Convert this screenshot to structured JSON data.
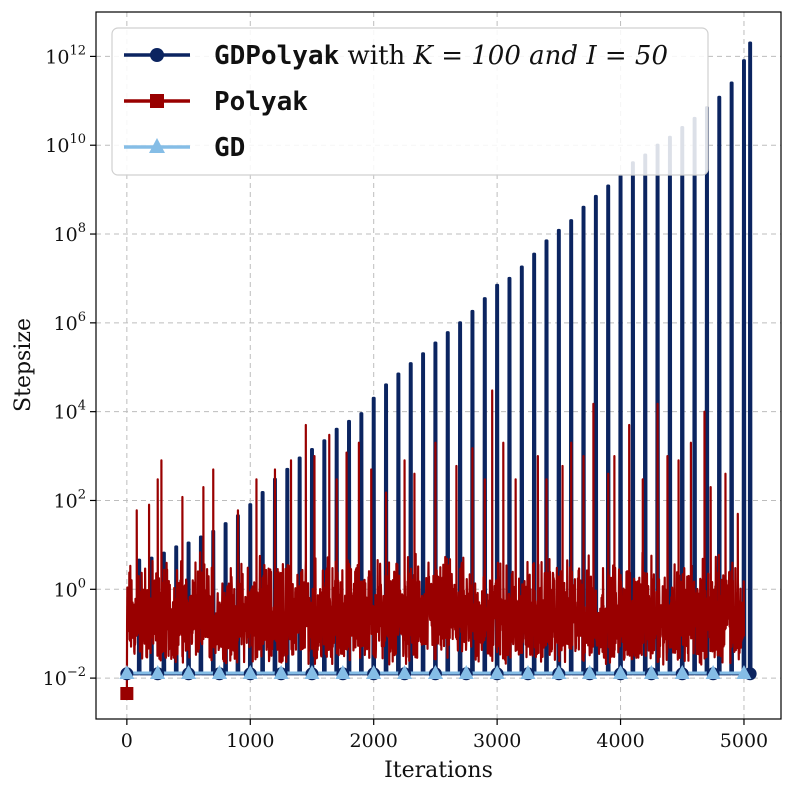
{
  "chart_data": {
    "type": "line",
    "title": "",
    "xlabel": "Iterations",
    "ylabel": "Stepsize",
    "xlim": [
      -250,
      5300
    ],
    "ylim": [
      0.0012,
      10000000000000
    ],
    "yscale": "log",
    "grid": true,
    "legend_position": "top-left",
    "x_ticks": [
      0,
      1000,
      2000,
      3000,
      4000,
      5000
    ],
    "x_tick_labels": [
      "0",
      "1000",
      "2000",
      "3000",
      "4000",
      "5000"
    ],
    "y_tick_exponents": [
      -2,
      0,
      2,
      4,
      6,
      8,
      10,
      12
    ],
    "y_tick_base": "10",
    "legend": [
      {
        "mono": "GDPolyak",
        "text": " with ",
        "math": "K = 100 and I = 50"
      },
      {
        "mono": "Polyak",
        "text": "",
        "math": ""
      },
      {
        "mono": "GD",
        "text": "",
        "math": ""
      }
    ],
    "series": [
      {
        "name": "GDPolyak with K = 100 and I = 50",
        "color": "#0b2460",
        "marker": "circle",
        "baseline": 0.0125,
        "spike_x": [
          100,
          200,
          300,
          400,
          500,
          600,
          700,
          800,
          900,
          1000,
          1100,
          1200,
          1300,
          1400,
          1500,
          1600,
          1700,
          1800,
          1900,
          2000,
          2100,
          2200,
          2300,
          2400,
          2500,
          2600,
          2700,
          2800,
          2900,
          3000,
          3100,
          3200,
          3300,
          3400,
          3500,
          3600,
          3700,
          3800,
          3900,
          4000,
          4100,
          4200,
          4300,
          4400,
          4500,
          4600,
          4700,
          4800,
          4900,
          5000,
          5050
        ],
        "spike_y": [
          4.5,
          5,
          6.5,
          9,
          11,
          15,
          20,
          30,
          45,
          80,
          150,
          300,
          500,
          900,
          1400,
          2200,
          4000,
          6000,
          9000,
          20000,
          40000,
          70000,
          120000,
          200000,
          350000,
          600000,
          1000000,
          1800000,
          3500000,
          7000000,
          10000000,
          18000000,
          35000000,
          70000000,
          120000000,
          200000000,
          400000000,
          700000000,
          1200000000,
          2000000000,
          4000000000,
          6000000000,
          10000000000,
          15000000000,
          25000000000,
          40000000000,
          70000000000,
          120000000000,
          250000000000,
          800000000000,
          2000000000000
        ],
        "marker_x": [
          0,
          250,
          500,
          750,
          1000,
          1250,
          1500,
          1750,
          2000,
          2250,
          2500,
          2750,
          3000,
          3250,
          3500,
          3750,
          4000,
          4250,
          4500,
          4750,
          5050
        ]
      },
      {
        "name": "Polyak",
        "color": "#990000",
        "marker": "square",
        "x_range": [
          0,
          5000
        ],
        "typical_range": [
          0.02,
          8
        ],
        "peak_x": [
          80,
          180,
          250,
          280,
          450,
          620,
          700,
          900,
          1050,
          1200,
          1330,
          1450,
          1520,
          1640,
          1700,
          1780,
          1880,
          1980,
          2100,
          2250,
          2330,
          2500,
          2670,
          2800,
          2900,
          2960,
          3050,
          3150,
          3330,
          3400,
          3530,
          3600,
          3700,
          3780,
          3900,
          3950,
          4070,
          4180,
          4300,
          4380,
          4470,
          4570,
          4680,
          4730,
          4850,
          4950
        ],
        "peak_y": [
          60,
          80,
          300,
          800,
          120,
          200,
          500,
          60,
          300,
          500,
          800,
          5000,
          1000,
          3000,
          300,
          1200,
          2000,
          500,
          150,
          800,
          400,
          2000,
          600,
          1500,
          300,
          30000,
          2000,
          300,
          1000,
          300,
          600,
          2000,
          1000,
          15000,
          400,
          1000,
          5000,
          300,
          15000,
          1000,
          800,
          2000,
          10000,
          200,
          400,
          50
        ],
        "start_value": 0.0045,
        "marker_x": [
          0
        ]
      },
      {
        "name": "GD",
        "color": "#85bde6",
        "marker": "triangle",
        "constant": 0.013,
        "marker_x": [
          0,
          250,
          500,
          750,
          1000,
          1250,
          1500,
          1750,
          2000,
          2250,
          2500,
          2750,
          3000,
          3250,
          3500,
          3750,
          4000,
          4250,
          4500,
          4750,
          5000
        ]
      }
    ]
  }
}
